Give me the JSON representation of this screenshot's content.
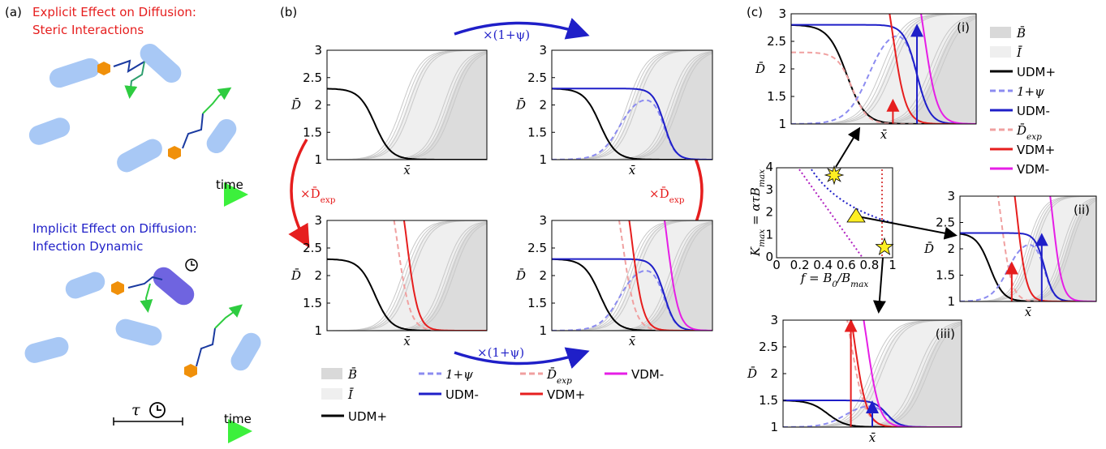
{
  "panel_a": {
    "label": "(a)",
    "explicit_title": [
      "Explicit Effect on Diffusion:",
      "Steric Interactions"
    ],
    "implicit_title": [
      "Implicit Effect on Diffusion:",
      "Infection Dynamic"
    ],
    "time_label_top": "time",
    "time_label_bottom": "time",
    "tau": "τ"
  },
  "panel_b": {
    "label": "(b)",
    "yticks": [
      "1",
      "1.5",
      "2",
      "2.5",
      "3"
    ],
    "ylabel": "D̄",
    "xlabel": "x̄",
    "arrow_top": "×(1+ψ)",
    "arrow_bottom": "×(1+ψ)",
    "arrow_left": [
      "×D̄",
      "exp"
    ],
    "arrow_right": [
      "×D̄",
      "exp"
    ],
    "legend": [
      {
        "label": "B̄",
        "color": "#d9d9d9",
        "style": "box"
      },
      {
        "label": "Ī",
        "color": "#efefef",
        "style": "box"
      },
      {
        "label": "UDM+",
        "color": "#000000",
        "style": "line"
      },
      {
        "label": "1+ψ",
        "color": "#8c8cf0",
        "style": "dash"
      },
      {
        "label": "UDM-",
        "color": "#1f1fc8",
        "style": "line"
      },
      {
        "label": [
          "D̄",
          "exp"
        ],
        "color": "#f0a0a0",
        "style": "dash"
      },
      {
        "label": "VDM+",
        "color": "#e61e1e",
        "style": "line"
      },
      {
        "label": "VDM-",
        "color": "#e61ee6",
        "style": "line"
      }
    ]
  },
  "panel_c": {
    "label": "(c)",
    "yticks": [
      "1",
      "1.5",
      "2",
      "2.5",
      "3"
    ],
    "ylabel": "D̄",
    "xlabel": "x̄",
    "plot_tags": [
      "(i)",
      "(ii)",
      "(iii)"
    ],
    "inset": {
      "yticks": [
        "0",
        "1",
        "2",
        "3",
        "4"
      ],
      "xticks": [
        "0",
        "0.2",
        "0.4",
        "0.6",
        "0.8",
        "1"
      ],
      "ylabel": [
        "K",
        "max",
        " = ατB",
        "max"
      ],
      "xlabel": [
        "f = B",
        "0",
        "/B",
        "max"
      ]
    },
    "legend": [
      {
        "label": "B̄",
        "color": "#d9d9d9",
        "style": "box"
      },
      {
        "label": "Ī",
        "color": "#efefef",
        "style": "box"
      },
      {
        "label": "UDM+",
        "color": "#000000",
        "style": "line"
      },
      {
        "label": "1+ψ",
        "color": "#8c8cf0",
        "style": "dash"
      },
      {
        "label": "UDM-",
        "color": "#1f1fc8",
        "style": "line"
      },
      {
        "label": [
          "D̄",
          "exp"
        ],
        "color": "#f0a0a0",
        "style": "dash"
      },
      {
        "label": "VDM+",
        "color": "#e61e1e",
        "style": "line"
      },
      {
        "label": "VDM-",
        "color": "#e61ee6",
        "style": "line"
      }
    ]
  }
}
